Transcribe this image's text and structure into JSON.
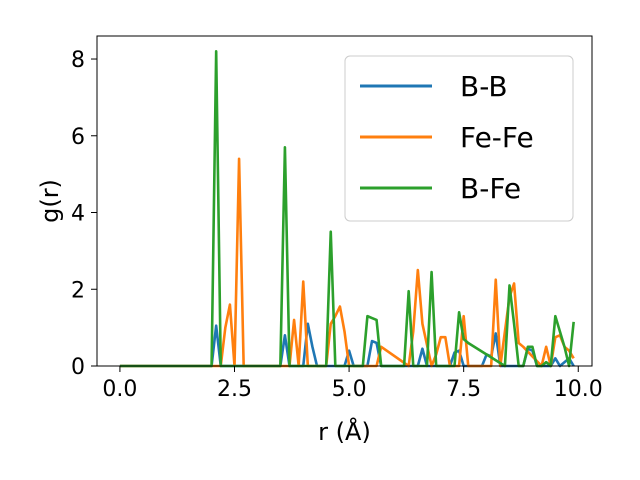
{
  "chart_data": {
    "type": "line",
    "xlabel": "r (Å)",
    "ylabel": "g(r)",
    "xlim": [
      -0.5,
      10.3
    ],
    "ylim": [
      0,
      8.6
    ],
    "xticks": [
      "0.0",
      "2.5",
      "5.0",
      "7.5",
      "10.0"
    ],
    "yticks": [
      "0",
      "2",
      "4",
      "6",
      "8"
    ],
    "xtick_values": [
      0,
      2.5,
      5,
      7.5,
      10
    ],
    "ytick_values": [
      0,
      2,
      4,
      6,
      8
    ],
    "legend_position": "top-right",
    "grid": false,
    "series": [
      {
        "name": "B-B",
        "color": "#1f77b4",
        "x": [
          0,
          2.0,
          2.1,
          2.2,
          3.5,
          3.6,
          3.7,
          4.0,
          4.1,
          4.2,
          4.3,
          4.9,
          5.0,
          5.1,
          5.4,
          5.5,
          5.6,
          5.7,
          6.5,
          6.6,
          6.7,
          7.2,
          7.3,
          7.4,
          7.5,
          7.9,
          8.0,
          8.1,
          8.2,
          8.3,
          8.8,
          8.9,
          9.0,
          9.1,
          9.4,
          9.5,
          9.6,
          9.8,
          9.9
        ],
        "y": [
          0,
          0,
          1.05,
          0,
          0,
          0.8,
          0,
          0,
          1.1,
          0.5,
          0,
          0,
          0.4,
          0,
          0,
          0.65,
          0.6,
          0,
          0,
          0.45,
          0,
          0,
          0.35,
          0.4,
          0,
          0,
          0.3,
          0.25,
          0.85,
          0,
          0,
          0.45,
          0.4,
          0,
          0,
          0.2,
          0,
          0.2,
          0
        ]
      },
      {
        "name": "Fe-Fe",
        "color": "#ff7f0e",
        "x": [
          0,
          2.2,
          2.3,
          2.4,
          2.5,
          2.6,
          2.7,
          3.7,
          3.8,
          3.9,
          4.0,
          4.1,
          4.2,
          4.5,
          4.6,
          4.7,
          4.8,
          4.9,
          5.0,
          5.6,
          5.7,
          6.3,
          6.4,
          6.5,
          6.6,
          6.8,
          6.9,
          7.0,
          7.1,
          7.2,
          7.4,
          7.5,
          7.6,
          8.1,
          8.2,
          8.3,
          8.5,
          8.6,
          8.7,
          8.8,
          9.2,
          9.3,
          9.4,
          9.5,
          9.6,
          9.7,
          9.8,
          9.9
        ],
        "y": [
          0,
          0,
          1.0,
          1.6,
          0,
          5.4,
          0,
          0,
          1.2,
          0,
          2.2,
          0,
          0,
          0,
          1.1,
          1.3,
          1.55,
          0.9,
          0,
          0,
          0.5,
          0,
          0.9,
          2.5,
          1.1,
          0,
          0.3,
          0.75,
          0.75,
          0,
          0,
          1.3,
          0,
          0,
          2.25,
          0,
          1.8,
          2.15,
          0.6,
          0.5,
          0,
          0.5,
          0,
          0.75,
          0.8,
          0.5,
          0.4,
          0.2
        ]
      },
      {
        "name": "B-Fe",
        "color": "#2ca02c",
        "x": [
          0,
          2.0,
          2.1,
          2.2,
          3.5,
          3.6,
          3.7,
          4.5,
          4.6,
          4.7,
          5.3,
          5.4,
          5.5,
          5.6,
          5.7,
          6.2,
          6.3,
          6.4,
          6.7,
          6.8,
          6.9,
          7.3,
          7.4,
          7.5,
          7.6,
          8.4,
          8.5,
          8.6,
          8.7,
          8.8,
          8.9,
          9.0,
          9.1,
          9.2,
          9.3,
          9.4,
          9.5,
          9.6,
          9.7,
          9.8,
          9.9
        ],
        "y": [
          0,
          0,
          8.2,
          0,
          0,
          5.7,
          0,
          0,
          3.5,
          0,
          0,
          1.3,
          1.25,
          1.2,
          0,
          0,
          1.95,
          0,
          0,
          2.45,
          0,
          0,
          1.4,
          0.7,
          0.6,
          0,
          2.1,
          1.1,
          0,
          0,
          0.5,
          0.5,
          0,
          0,
          0.1,
          0,
          1.3,
          0.9,
          0.5,
          0,
          1.15
        ]
      }
    ]
  }
}
